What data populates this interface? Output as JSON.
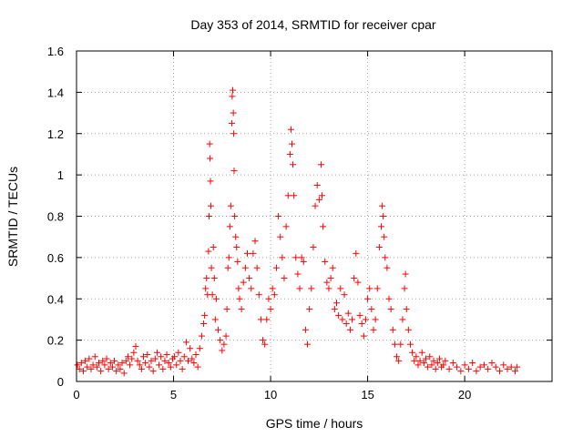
{
  "chart_data": {
    "type": "scatter",
    "title": "Day 353 of 2014, SRMTID for receiver cpar",
    "xlabel": "GPS time / hours",
    "ylabel": "SRMTID / TECUs",
    "xlim": [
      0,
      24.5
    ],
    "ylim": [
      0,
      1.6
    ],
    "x_ticks": [
      0,
      5,
      10,
      15,
      20
    ],
    "x_tick_labels": [
      "0",
      "5",
      "10",
      "15",
      "20"
    ],
    "y_ticks": [
      0,
      0.2,
      0.4,
      0.6,
      0.8,
      1,
      1.2,
      1.4,
      1.6
    ],
    "y_tick_labels": [
      "0",
      "0.2",
      "0.4",
      "0.6",
      "0.8",
      "1",
      "1.2",
      "1.4",
      "1.6"
    ],
    "grid": true,
    "marker": "+",
    "color": "#ff0000",
    "series": [
      {
        "name": "SRMTID",
        "points": [
          [
            0.05,
            0.08
          ],
          [
            0.15,
            0.06
          ],
          [
            0.25,
            0.09
          ],
          [
            0.35,
            0.05
          ],
          [
            0.45,
            0.1
          ],
          [
            0.55,
            0.07
          ],
          [
            0.65,
            0.11
          ],
          [
            0.75,
            0.06
          ],
          [
            0.85,
            0.08
          ],
          [
            0.95,
            0.12
          ],
          [
            1.05,
            0.07
          ],
          [
            1.15,
            0.09
          ],
          [
            1.25,
            0.05
          ],
          [
            1.35,
            0.1
          ],
          [
            1.45,
            0.08
          ],
          [
            1.55,
            0.11
          ],
          [
            1.65,
            0.06
          ],
          [
            1.75,
            0.09
          ],
          [
            1.85,
            0.07
          ],
          [
            1.95,
            0.1
          ],
          [
            2.05,
            0.05
          ],
          [
            2.15,
            0.08
          ],
          [
            2.25,
            0.06
          ],
          [
            2.35,
            0.09
          ],
          [
            2.45,
            0.04
          ],
          [
            2.55,
            0.1
          ],
          [
            2.65,
            0.12
          ],
          [
            2.75,
            0.08
          ],
          [
            2.85,
            0.11
          ],
          [
            2.95,
            0.14
          ],
          [
            3.05,
            0.17
          ],
          [
            3.15,
            0.1
          ],
          [
            3.25,
            0.08
          ],
          [
            3.35,
            0.06
          ],
          [
            3.45,
            0.12
          ],
          [
            3.55,
            0.09
          ],
          [
            3.65,
            0.13
          ],
          [
            3.75,
            0.07
          ],
          [
            3.85,
            0.1
          ],
          [
            3.95,
            0.05
          ],
          [
            4.05,
            0.11
          ],
          [
            4.15,
            0.14
          ],
          [
            4.25,
            0.08
          ],
          [
            4.35,
            0.12
          ],
          [
            4.45,
            0.06
          ],
          [
            4.55,
            0.1
          ],
          [
            4.65,
            0.13
          ],
          [
            4.75,
            0.09
          ],
          [
            4.85,
            0.07
          ],
          [
            4.95,
            0.11
          ],
          [
            5.05,
            0.12
          ],
          [
            5.15,
            0.08
          ],
          [
            5.25,
            0.14
          ],
          [
            5.35,
            0.1
          ],
          [
            5.45,
            0.06
          ],
          [
            5.55,
            0.12
          ],
          [
            5.65,
            0.19
          ],
          [
            5.75,
            0.1
          ],
          [
            5.85,
            0.16
          ],
          [
            5.95,
            0.11
          ],
          [
            6.05,
            0.09
          ],
          [
            6.15,
            0.13
          ],
          [
            6.25,
            0.07
          ],
          [
            6.35,
            0.16
          ],
          [
            6.45,
            0.22
          ],
          [
            6.55,
            0.28
          ],
          [
            6.6,
            0.32
          ],
          [
            6.65,
            0.45
          ],
          [
            6.7,
            0.5
          ],
          [
            6.75,
            0.42
          ],
          [
            6.8,
            0.63
          ],
          [
            6.83,
            0.8
          ],
          [
            6.86,
            1.15
          ],
          [
            6.88,
            1.08
          ],
          [
            6.9,
            0.97
          ],
          [
            6.92,
            0.85
          ],
          [
            6.95,
            0.55
          ],
          [
            7.0,
            0.42
          ],
          [
            7.05,
            0.65
          ],
          [
            7.1,
            0.5
          ],
          [
            7.15,
            0.3
          ],
          [
            7.2,
            0.4
          ],
          [
            7.3,
            0.25
          ],
          [
            7.4,
            0.2
          ],
          [
            7.5,
            0.15
          ],
          [
            7.6,
            0.18
          ],
          [
            7.7,
            0.22
          ],
          [
            7.75,
            0.35
          ],
          [
            7.8,
            0.55
          ],
          [
            7.85,
            0.6
          ],
          [
            7.9,
            0.75
          ],
          [
            7.95,
            0.85
          ],
          [
            8.0,
            1.25
          ],
          [
            8.02,
            1.38
          ],
          [
            8.05,
            1.41
          ],
          [
            8.08,
            1.3
          ],
          [
            8.1,
            1.2
          ],
          [
            8.12,
            1.02
          ],
          [
            8.15,
            0.8
          ],
          [
            8.2,
            0.7
          ],
          [
            8.25,
            0.65
          ],
          [
            8.3,
            0.58
          ],
          [
            8.35,
            0.45
          ],
          [
            8.4,
            0.4
          ],
          [
            8.5,
            0.35
          ],
          [
            8.6,
            0.48
          ],
          [
            8.7,
            0.55
          ],
          [
            8.8,
            0.62
          ],
          [
            8.9,
            0.5
          ],
          [
            9.0,
            0.45
          ],
          [
            9.1,
            0.62
          ],
          [
            9.2,
            0.68
          ],
          [
            9.3,
            0.55
          ],
          [
            9.4,
            0.42
          ],
          [
            9.5,
            0.3
          ],
          [
            9.6,
            0.2
          ],
          [
            9.7,
            0.18
          ],
          [
            9.8,
            0.3
          ],
          [
            9.9,
            0.4
          ],
          [
            10.0,
            0.35
          ],
          [
            10.1,
            0.45
          ],
          [
            10.2,
            0.42
          ],
          [
            10.3,
            0.55
          ],
          [
            10.4,
            0.8
          ],
          [
            10.5,
            0.7
          ],
          [
            10.6,
            0.6
          ],
          [
            10.7,
            0.5
          ],
          [
            10.8,
            0.75
          ],
          [
            10.9,
            0.9
          ],
          [
            11.0,
            1.1
          ],
          [
            11.05,
            1.22
          ],
          [
            11.1,
            1.15
          ],
          [
            11.15,
            1.05
          ],
          [
            11.2,
            0.9
          ],
          [
            11.3,
            0.6
          ],
          [
            11.4,
            0.52
          ],
          [
            11.5,
            0.45
          ],
          [
            11.6,
            0.6
          ],
          [
            11.7,
            0.58
          ],
          [
            11.8,
            0.25
          ],
          [
            11.9,
            0.18
          ],
          [
            12.0,
            0.35
          ],
          [
            12.1,
            0.45
          ],
          [
            12.2,
            0.65
          ],
          [
            12.3,
            0.85
          ],
          [
            12.4,
            0.95
          ],
          [
            12.5,
            0.88
          ],
          [
            12.6,
            1.05
          ],
          [
            12.65,
            0.9
          ],
          [
            12.7,
            0.75
          ],
          [
            12.8,
            0.58
          ],
          [
            12.9,
            0.48
          ],
          [
            13.0,
            0.45
          ],
          [
            13.1,
            0.5
          ],
          [
            13.2,
            0.55
          ],
          [
            13.3,
            0.35
          ],
          [
            13.4,
            0.38
          ],
          [
            13.5,
            0.32
          ],
          [
            13.6,
            0.45
          ],
          [
            13.7,
            0.3
          ],
          [
            13.8,
            0.42
          ],
          [
            13.9,
            0.28
          ],
          [
            14.0,
            0.33
          ],
          [
            14.1,
            0.25
          ],
          [
            14.2,
            0.3
          ],
          [
            14.3,
            0.5
          ],
          [
            14.4,
            0.62
          ],
          [
            14.5,
            0.48
          ],
          [
            14.6,
            0.32
          ],
          [
            14.7,
            0.28
          ],
          [
            14.8,
            0.22
          ],
          [
            14.9,
            0.3
          ],
          [
            15.0,
            0.4
          ],
          [
            15.1,
            0.45
          ],
          [
            15.2,
            0.35
          ],
          [
            15.3,
            0.25
          ],
          [
            15.4,
            0.3
          ],
          [
            15.5,
            0.45
          ],
          [
            15.6,
            0.65
          ],
          [
            15.7,
            0.75
          ],
          [
            15.75,
            0.85
          ],
          [
            15.8,
            0.8
          ],
          [
            15.85,
            0.7
          ],
          [
            15.9,
            0.6
          ],
          [
            16.0,
            0.55
          ],
          [
            16.1,
            0.4
          ],
          [
            16.2,
            0.35
          ],
          [
            16.3,
            0.25
          ],
          [
            16.4,
            0.18
          ],
          [
            16.5,
            0.12
          ],
          [
            16.6,
            0.1
          ],
          [
            16.7,
            0.18
          ],
          [
            16.8,
            0.3
          ],
          [
            16.9,
            0.45
          ],
          [
            16.95,
            0.52
          ],
          [
            17.0,
            0.35
          ],
          [
            17.1,
            0.25
          ],
          [
            17.2,
            0.18
          ],
          [
            17.3,
            0.14
          ],
          [
            17.4,
            0.1
          ],
          [
            17.5,
            0.12
          ],
          [
            17.6,
            0.08
          ],
          [
            17.7,
            0.1
          ],
          [
            17.8,
            0.14
          ],
          [
            17.9,
            0.09
          ],
          [
            18.0,
            0.11
          ],
          [
            18.1,
            0.07
          ],
          [
            18.2,
            0.12
          ],
          [
            18.3,
            0.08
          ],
          [
            18.4,
            0.1
          ],
          [
            18.5,
            0.06
          ],
          [
            18.6,
            0.09
          ],
          [
            18.7,
            0.11
          ],
          [
            18.8,
            0.07
          ],
          [
            18.9,
            0.08
          ],
          [
            19.0,
            0.1
          ],
          [
            19.2,
            0.06
          ],
          [
            19.4,
            0.09
          ],
          [
            19.6,
            0.07
          ],
          [
            19.8,
            0.05
          ],
          [
            20.0,
            0.08
          ],
          [
            20.2,
            0.06
          ],
          [
            20.4,
            0.09
          ],
          [
            20.6,
            0.05
          ],
          [
            20.8,
            0.07
          ],
          [
            21.0,
            0.08
          ],
          [
            21.2,
            0.06
          ],
          [
            21.4,
            0.09
          ],
          [
            21.6,
            0.07
          ],
          [
            21.8,
            0.05
          ],
          [
            22.0,
            0.08
          ],
          [
            22.2,
            0.06
          ],
          [
            22.4,
            0.07
          ],
          [
            22.6,
            0.05
          ],
          [
            22.7,
            0.07
          ]
        ]
      }
    ]
  }
}
